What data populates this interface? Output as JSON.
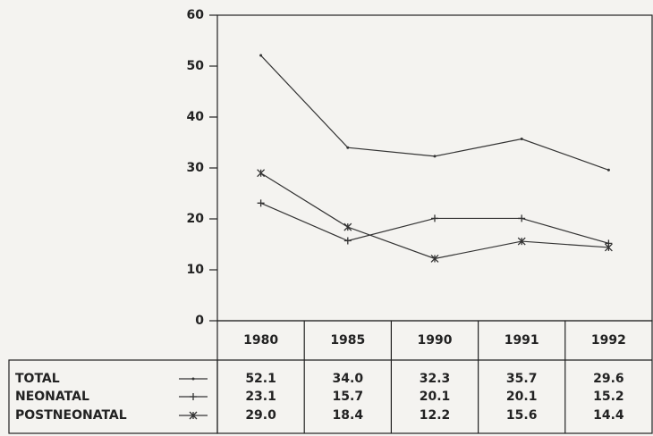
{
  "chart_data": {
    "type": "line",
    "categories": [
      "1980",
      "1985",
      "1990",
      "1991",
      "1992"
    ],
    "series": [
      {
        "name": "TOTAL",
        "marker": "dot",
        "color": "#333333",
        "values": [
          52.1,
          34.0,
          32.3,
          35.7,
          29.6
        ],
        "value_labels": [
          "52.1",
          "34.0",
          "32.3",
          "35.7",
          "29.6"
        ]
      },
      {
        "name": "NEONATAL",
        "marker": "plus",
        "color": "#333333",
        "values": [
          23.1,
          15.7,
          20.1,
          20.1,
          15.2
        ],
        "value_labels": [
          "23.1",
          "15.7",
          "20.1",
          "20.1",
          "15.2"
        ]
      },
      {
        "name": "POSTNEONATAL",
        "marker": "x",
        "color": "#333333",
        "values": [
          29.0,
          18.4,
          12.2,
          15.6,
          14.4
        ],
        "value_labels": [
          "29.0",
          "18.4",
          "12.2",
          "15.6",
          "14.4"
        ]
      }
    ],
    "ylim": [
      0,
      60
    ],
    "yticks": [
      0,
      10,
      20,
      30,
      40,
      50,
      60
    ],
    "grid": false
  }
}
